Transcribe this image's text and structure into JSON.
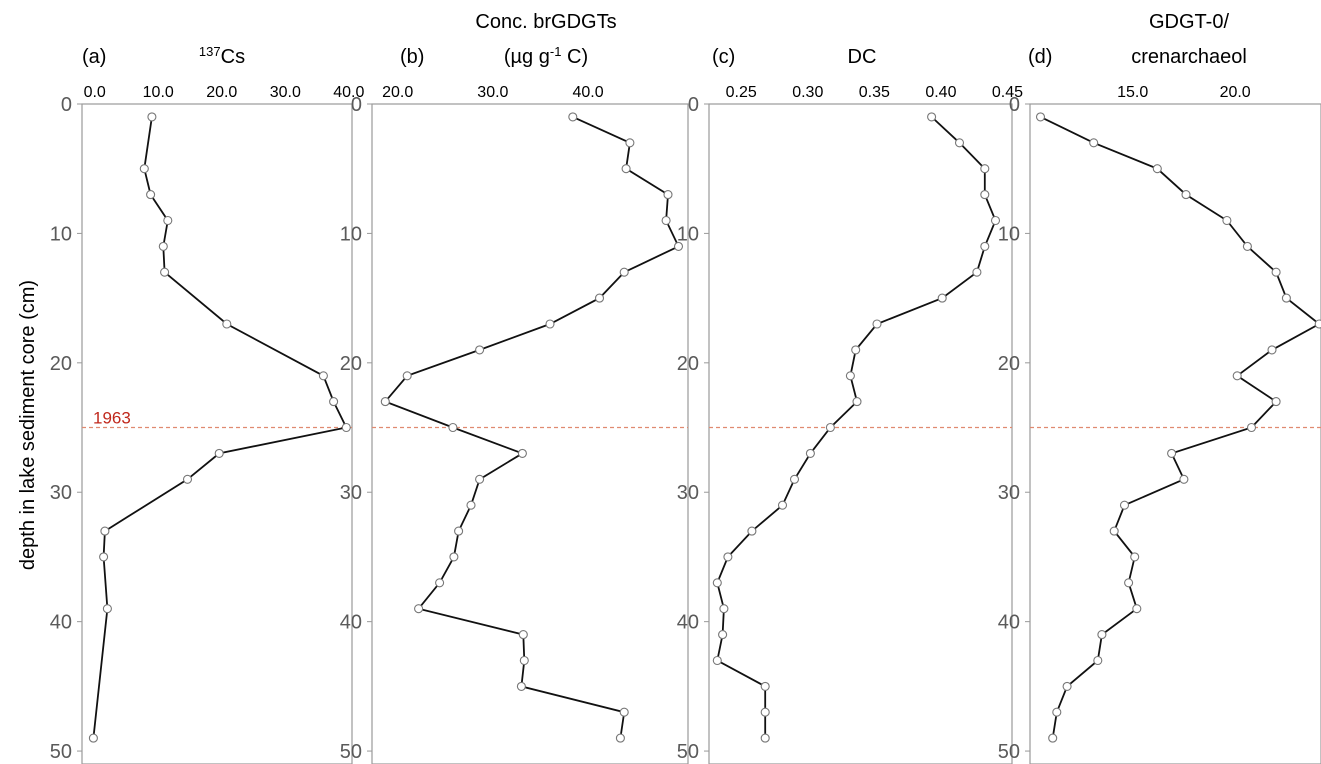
{
  "y_axis_label": "depth in lake sediment core (cm)",
  "chart_data": [
    {
      "type": "line",
      "panel_label": "(a)",
      "title_parts": [
        {
          "text": "137",
          "sup": true
        },
        {
          "text": "Cs"
        }
      ],
      "x_ticks": [
        "0.0",
        "10.0",
        "20.0",
        "30.0",
        "40.0"
      ],
      "xlim": [
        -2,
        40.5
      ],
      "ylim": [
        0,
        51
      ],
      "y_ticks": [
        "0",
        "10",
        "20",
        "30",
        "40",
        "50"
      ],
      "y_inverted": true,
      "reference_line": {
        "depth": 25,
        "label": "1963"
      },
      "series": [
        {
          "depth": [
            1,
            5,
            7,
            9,
            11,
            13,
            17,
            21,
            23,
            25,
            27,
            29,
            33,
            35,
            39,
            49
          ],
          "value": [
            9.0,
            7.8,
            8.8,
            11.5,
            10.8,
            11.0,
            20.8,
            36.0,
            37.6,
            39.6,
            19.6,
            14.6,
            1.6,
            1.4,
            2.0,
            -0.2
          ]
        }
      ]
    },
    {
      "type": "line",
      "panel_label": "(b)",
      "title_parts": [
        {
          "text": "Conc. brGDGTs"
        }
      ],
      "title_line2_parts": [
        {
          "text": "(µg g"
        },
        {
          "text": "-1",
          "sup": true
        },
        {
          "text": " C)"
        }
      ],
      "x_ticks": [
        "20.0",
        "30.0",
        "40.0"
      ],
      "xlim": [
        17.3,
        50.5
      ],
      "ylim": [
        0,
        51
      ],
      "y_ticks": [
        "0",
        "10",
        "20",
        "30",
        "40",
        "50"
      ],
      "y_inverted": true,
      "reference_line": {
        "depth": 25
      },
      "series": [
        {
          "depth": [
            1,
            3,
            5,
            7,
            9,
            11,
            13,
            15,
            17,
            19,
            21,
            23,
            25,
            27,
            29,
            31,
            33,
            35,
            37,
            39,
            41,
            43,
            45,
            47,
            49
          ],
          "value": [
            38.4,
            44.4,
            44.0,
            48.4,
            48.2,
            49.5,
            43.8,
            41.2,
            36.0,
            28.6,
            21.0,
            18.7,
            25.8,
            33.1,
            28.6,
            27.7,
            26.4,
            25.9,
            24.4,
            22.2,
            33.2,
            33.3,
            33.0,
            43.8,
            43.4
          ]
        }
      ]
    },
    {
      "type": "line",
      "panel_label": "(c)",
      "title_parts": [
        {
          "text": "DC"
        }
      ],
      "x_ticks": [
        "0.25",
        "0.30",
        "0.35",
        "0.40",
        "0.45"
      ],
      "xlim": [
        0.2258,
        0.4534
      ],
      "ylim": [
        0,
        51
      ],
      "y_ticks": [
        "0",
        "10",
        "20",
        "30",
        "40",
        "50"
      ],
      "y_inverted": true,
      "reference_line": {
        "depth": 25
      },
      "series": [
        {
          "depth": [
            1,
            3,
            5,
            7,
            9,
            11,
            13,
            15,
            17,
            19,
            21,
            23,
            25,
            27,
            29,
            31,
            33,
            35,
            37,
            39,
            41,
            43,
            45,
            47,
            49
          ],
          "value": [
            0.393,
            0.414,
            0.433,
            0.433,
            0.441,
            0.433,
            0.427,
            0.401,
            0.352,
            0.336,
            0.332,
            0.337,
            0.317,
            0.302,
            0.29,
            0.281,
            0.258,
            0.24,
            0.232,
            0.237,
            0.236,
            0.232,
            0.268,
            0.268,
            0.268
          ]
        }
      ]
    },
    {
      "type": "line",
      "panel_label": "(d)",
      "title_parts": [
        {
          "text": "GDGT-0/"
        }
      ],
      "title_line2_parts": [
        {
          "text": "crenarchaeol"
        }
      ],
      "x_ticks": [
        "15.0",
        "20.0"
      ],
      "xlim": [
        9.99,
        24.19
      ],
      "ylim": [
        0,
        51
      ],
      "y_ticks": [
        "0",
        "10",
        "20",
        "30",
        "40",
        "50"
      ],
      "y_inverted": true,
      "reference_line": {
        "depth": 25
      },
      "series": [
        {
          "depth": [
            1,
            3,
            5,
            7,
            9,
            11,
            13,
            15,
            17,
            19,
            21,
            23,
            25,
            27,
            29,
            31,
            33,
            35,
            37,
            39,
            41,
            43,
            45,
            47,
            49
          ],
          "value": [
            10.5,
            13.1,
            16.2,
            17.6,
            19.6,
            20.6,
            22.0,
            22.5,
            24.1,
            21.8,
            20.1,
            22.0,
            20.8,
            16.9,
            17.5,
            14.6,
            14.1,
            15.1,
            14.8,
            15.2,
            13.5,
            13.3,
            11.8,
            11.3,
            11.1
          ]
        }
      ]
    }
  ]
}
